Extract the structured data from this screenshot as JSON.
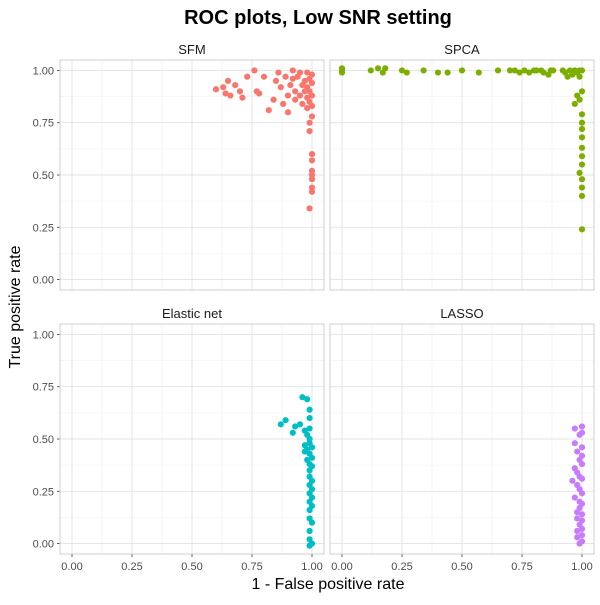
{
  "chart_data": {
    "type": "scatter",
    "title": "ROC plots, Low SNR setting",
    "xlabel": "1 - False positive rate",
    "ylabel": "True positive rate",
    "xlim": [
      -0.05,
      1.05
    ],
    "ylim": [
      -0.05,
      1.05
    ],
    "x_ticks": [
      "0.00",
      "0.25",
      "0.50",
      "0.75",
      "1.00"
    ],
    "y_ticks": [
      "0.00",
      "0.25",
      "0.50",
      "0.75",
      "1.00"
    ],
    "grid": true,
    "panels": [
      {
        "name": "SFM",
        "color": "#F8766D",
        "points": [
          [
            0.6,
            0.91
          ],
          [
            0.63,
            0.92
          ],
          [
            0.64,
            0.89
          ],
          [
            0.65,
            0.95
          ],
          [
            0.66,
            0.88
          ],
          [
            0.68,
            0.93
          ],
          [
            0.7,
            0.9
          ],
          [
            0.71,
            0.87
          ],
          [
            0.73,
            0.97
          ],
          [
            0.76,
            1.0
          ],
          [
            0.77,
            0.9
          ],
          [
            0.78,
            0.89
          ],
          [
            0.8,
            0.97
          ],
          [
            0.82,
            0.81
          ],
          [
            0.84,
            0.86
          ],
          [
            0.85,
            0.95
          ],
          [
            0.86,
            0.99
          ],
          [
            0.87,
            0.92
          ],
          [
            0.88,
            0.84
          ],
          [
            0.89,
            0.97
          ],
          [
            0.9,
            0.88
          ],
          [
            0.9,
            0.8
          ],
          [
            0.91,
            0.93
          ],
          [
            0.92,
            0.96
          ],
          [
            0.92,
            1.0
          ],
          [
            0.93,
            0.9
          ],
          [
            0.93,
            0.86
          ],
          [
            0.94,
            0.97
          ],
          [
            0.95,
            0.99
          ],
          [
            0.95,
            0.88
          ],
          [
            0.96,
            0.93
          ],
          [
            0.96,
            0.84
          ],
          [
            0.97,
            0.95
          ],
          [
            0.97,
            0.9
          ],
          [
            0.98,
            0.99
          ],
          [
            0.98,
            0.92
          ],
          [
            0.98,
            0.87
          ],
          [
            0.98,
            0.82
          ],
          [
            0.99,
            0.96
          ],
          [
            0.99,
            0.9
          ],
          [
            0.99,
            0.85
          ],
          [
            0.99,
            0.75
          ],
          [
            0.99,
            0.71
          ],
          [
            1.0,
            0.98
          ],
          [
            1.0,
            0.94
          ],
          [
            1.0,
            0.88
          ],
          [
            1.0,
            0.83
          ],
          [
            1.0,
            0.78
          ],
          [
            1.0,
            0.6
          ],
          [
            1.0,
            0.57
          ],
          [
            1.0,
            0.52
          ],
          [
            1.0,
            0.5
          ],
          [
            1.0,
            0.48
          ],
          [
            1.0,
            0.44
          ],
          [
            1.0,
            0.42
          ],
          [
            0.99,
            0.34
          ]
        ]
      },
      {
        "name": "SPCA",
        "color": "#7CAE00",
        "points": [
          [
            0.0,
            1.0
          ],
          [
            0.0,
            0.99
          ],
          [
            0.0,
            1.01
          ],
          [
            0.12,
            1.0
          ],
          [
            0.15,
            1.01
          ],
          [
            0.17,
            0.99
          ],
          [
            0.18,
            1.01
          ],
          [
            0.25,
            1.0
          ],
          [
            0.27,
            0.99
          ],
          [
            0.34,
            1.0
          ],
          [
            0.4,
            0.99
          ],
          [
            0.44,
            0.99
          ],
          [
            0.5,
            1.0
          ],
          [
            0.57,
            0.99
          ],
          [
            0.65,
            1.0
          ],
          [
            0.7,
            1.0
          ],
          [
            0.72,
            1.0
          ],
          [
            0.74,
            0.99
          ],
          [
            0.76,
            1.0
          ],
          [
            0.78,
            0.99
          ],
          [
            0.8,
            1.0
          ],
          [
            0.81,
            1.0
          ],
          [
            0.83,
            1.0
          ],
          [
            0.84,
            0.99
          ],
          [
            0.86,
            0.98
          ],
          [
            0.87,
            1.0
          ],
          [
            0.88,
            1.0
          ],
          [
            0.92,
            1.0
          ],
          [
            0.93,
            0.99
          ],
          [
            0.94,
            0.97
          ],
          [
            0.95,
            1.0
          ],
          [
            0.96,
            0.98
          ],
          [
            0.96,
            0.99
          ],
          [
            0.97,
            1.0
          ],
          [
            0.97,
            0.84
          ],
          [
            0.98,
            0.99
          ],
          [
            0.98,
            0.88
          ],
          [
            0.99,
            1.0
          ],
          [
            0.99,
            0.97
          ],
          [
            0.99,
            0.86
          ],
          [
            1.0,
            1.0
          ],
          [
            1.0,
            0.9
          ],
          [
            1.0,
            0.79
          ],
          [
            1.0,
            0.75
          ],
          [
            1.0,
            0.72
          ],
          [
            1.0,
            0.68
          ],
          [
            1.0,
            0.63
          ],
          [
            1.0,
            0.59
          ],
          [
            1.0,
            0.55
          ],
          [
            0.99,
            0.51
          ],
          [
            1.0,
            0.48
          ],
          [
            1.0,
            0.44
          ],
          [
            1.0,
            0.4
          ],
          [
            1.0,
            0.24
          ]
        ]
      },
      {
        "name": "Elastic net",
        "color": "#00BFC4",
        "points": [
          [
            0.87,
            0.57
          ],
          [
            0.89,
            0.59
          ],
          [
            0.92,
            0.53
          ],
          [
            0.93,
            0.56
          ],
          [
            0.95,
            0.57
          ],
          [
            0.96,
            0.7
          ],
          [
            0.97,
            0.44
          ],
          [
            0.97,
            0.47
          ],
          [
            0.97,
            0.54
          ],
          [
            0.98,
            0.45
          ],
          [
            0.98,
            0.69
          ],
          [
            0.98,
            0.52
          ],
          [
            0.98,
            0.4
          ],
          [
            0.99,
            0.64
          ],
          [
            0.99,
            0.6
          ],
          [
            0.99,
            0.55
          ],
          [
            0.99,
            0.5
          ],
          [
            0.99,
            0.48
          ],
          [
            0.99,
            0.43
          ],
          [
            0.99,
            0.38
          ],
          [
            0.99,
            0.35
          ],
          [
            0.99,
            0.32
          ],
          [
            0.99,
            0.28
          ],
          [
            0.99,
            0.24
          ],
          [
            0.99,
            0.2
          ],
          [
            0.99,
            0.16
          ],
          [
            0.99,
            0.12
          ],
          [
            0.99,
            0.06
          ],
          [
            0.99,
            0.02
          ],
          [
            0.99,
            -0.01
          ],
          [
            1.0,
            0.46
          ],
          [
            1.0,
            0.41
          ],
          [
            1.0,
            0.37
          ],
          [
            1.0,
            0.3
          ],
          [
            1.0,
            0.26
          ],
          [
            1.0,
            0.22
          ],
          [
            1.0,
            0.18
          ],
          [
            1.0,
            0.1
          ],
          [
            1.0,
            0.0
          ]
        ]
      },
      {
        "name": "LASSO",
        "color": "#C77CFF",
        "points": [
          [
            0.96,
            0.3
          ],
          [
            0.97,
            0.48
          ],
          [
            0.97,
            0.55
          ],
          [
            0.97,
            0.36
          ],
          [
            0.97,
            0.22
          ],
          [
            0.98,
            0.34
          ],
          [
            0.98,
            0.28
          ],
          [
            0.98,
            0.15
          ],
          [
            0.98,
            0.44
          ],
          [
            0.98,
            0.12
          ],
          [
            0.98,
            0.06
          ],
          [
            0.98,
            0.03
          ],
          [
            0.99,
            0.52
          ],
          [
            0.99,
            0.4
          ],
          [
            0.99,
            0.32
          ],
          [
            0.99,
            0.26
          ],
          [
            0.99,
            0.2
          ],
          [
            0.99,
            0.17
          ],
          [
            0.99,
            0.09
          ],
          [
            0.99,
            0.0
          ],
          [
            1.0,
            0.56
          ],
          [
            1.0,
            0.53
          ],
          [
            1.0,
            0.46
          ],
          [
            1.0,
            0.42
          ],
          [
            1.0,
            0.38
          ],
          [
            1.0,
            0.31
          ],
          [
            1.0,
            0.24
          ],
          [
            1.0,
            0.19
          ],
          [
            1.0,
            0.14
          ],
          [
            1.0,
            0.11
          ],
          [
            1.0,
            0.07
          ],
          [
            1.0,
            0.04
          ],
          [
            1.0,
            0.01
          ]
        ]
      }
    ]
  }
}
